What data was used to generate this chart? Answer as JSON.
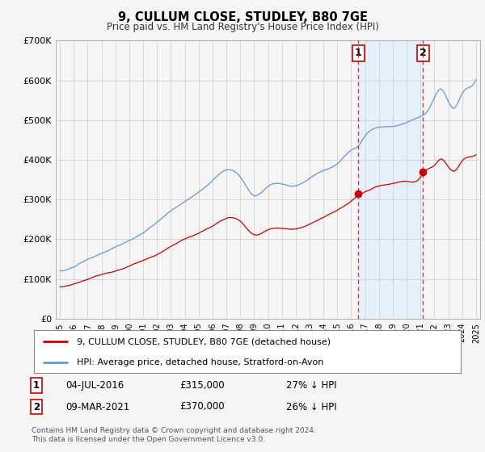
{
  "title": "9, CULLUM CLOSE, STUDLEY, B80 7GE",
  "subtitle": "Price paid vs. HM Land Registry's House Price Index (HPI)",
  "ylim": [
    0,
    700000
  ],
  "yticks": [
    0,
    100000,
    200000,
    300000,
    400000,
    500000,
    600000,
    700000
  ],
  "ytick_labels": [
    "£0",
    "£100K",
    "£200K",
    "£300K",
    "£400K",
    "£500K",
    "£600K",
    "£700K"
  ],
  "xlim_start": 1994.7,
  "xlim_end": 2025.3,
  "sale1_date": 2016.5,
  "sale1_price": 315000,
  "sale2_date": 2021.18,
  "sale2_price": 370000,
  "legend_property": "9, CULLUM CLOSE, STUDLEY, B80 7GE (detached house)",
  "legend_hpi": "HPI: Average price, detached house, Stratford-on-Avon",
  "footnote": "Contains HM Land Registry data © Crown copyright and database right 2024.\nThis data is licensed under the Open Government Licence v3.0.",
  "property_color": "#cc0000",
  "hpi_color": "#6699cc",
  "shade_color": "#ddeeff",
  "background_color": "#f5f5f5",
  "plot_bg_color": "#f5f5f5",
  "grid_color": "#cccccc"
}
